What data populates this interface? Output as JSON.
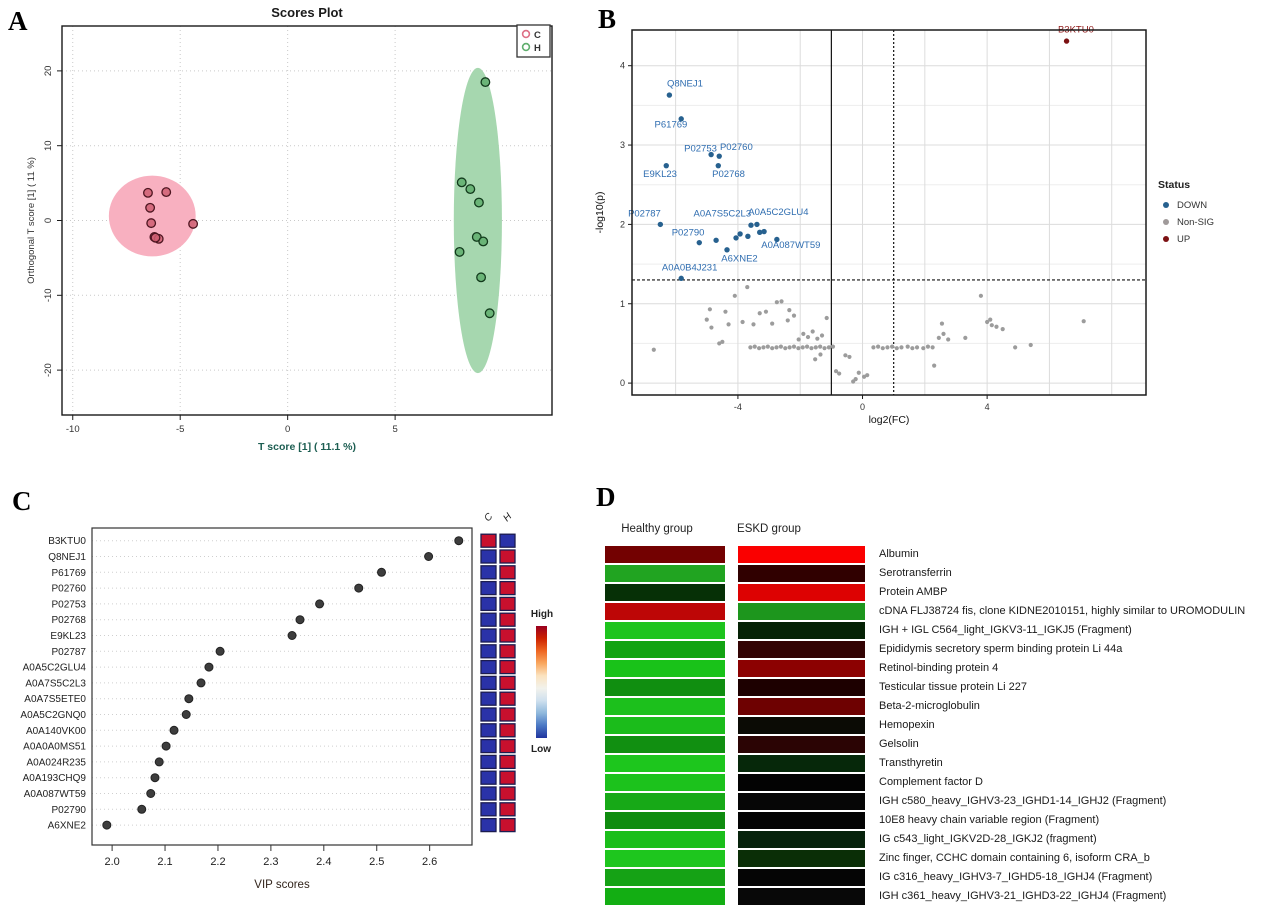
{
  "panels": {
    "a": "A",
    "b": "B",
    "c": "C",
    "d": "D"
  },
  "chart_data": [
    {
      "panel": "A",
      "id": "scores_plot",
      "type": "scatter",
      "title": "Scores Plot",
      "xlabel": "T score [1] ( 11.1 %)",
      "ylabel": "Orthogonal T score [1] ( 11 %)",
      "xlim": [
        -10.5,
        12.3
      ],
      "ylim": [
        -26,
        26
      ],
      "xticks": [
        -10,
        -5,
        0,
        5
      ],
      "yticks": [
        -20,
        -10,
        0,
        10,
        20
      ],
      "grid": "dotted",
      "legend": [
        {
          "label": "C",
          "color": "#dd6f85"
        },
        {
          "label": "H",
          "color": "#5fae6d"
        }
      ],
      "series": [
        {
          "name": "C",
          "marker_fill": "#cf5f72",
          "marker_stroke": "#4d1520",
          "ellipse_fill": "#f8b0c0",
          "ellipse": {
            "cx": -6.3,
            "cy": 0.6,
            "rx": 2.02,
            "ry": 5.4,
            "rot": 0
          },
          "points": [
            [
              -6.5,
              3.7
            ],
            [
              -5.65,
              3.8
            ],
            [
              -6.4,
              1.7
            ],
            [
              -6.35,
              -0.35
            ],
            [
              -4.4,
              -0.45
            ],
            [
              -6.2,
              -2.2
            ],
            [
              -6.0,
              -2.45
            ],
            [
              -6.15,
              -2.3
            ]
          ]
        },
        {
          "name": "H",
          "marker_fill": "#5fae6d",
          "marker_stroke": "#123a1c",
          "ellipse_fill": "#a6d7af",
          "ellipse": {
            "cx": 8.85,
            "cy": 0,
            "rx": 1.12,
            "ry": 20.4,
            "rot": 0
          },
          "points": [
            [
              9.2,
              18.5
            ],
            [
              8.1,
              5.1
            ],
            [
              8.5,
              4.2
            ],
            [
              8.9,
              2.4
            ],
            [
              8.8,
              -2.2
            ],
            [
              9.1,
              -2.8
            ],
            [
              8.0,
              -4.2
            ],
            [
              9.0,
              -7.6
            ],
            [
              9.4,
              -12.4
            ]
          ]
        }
      ]
    },
    {
      "panel": "B",
      "id": "volcano_plot",
      "type": "scatter",
      "xlabel": "log2(FC)",
      "ylabel": "-log10(p)",
      "xlim": [
        -7.4,
        9.1
      ],
      "ylim": [
        -0.15,
        4.45
      ],
      "xticks": [
        -4,
        0,
        4
      ],
      "yticks": [
        0,
        1,
        2,
        3,
        4
      ],
      "grid_x": [
        -6,
        -4,
        -2,
        0,
        2,
        4,
        6,
        8
      ],
      "grid_y": [
        0,
        1,
        2,
        3,
        4
      ],
      "grid_y_minor": [
        0.5,
        1.5,
        2.5,
        3.5
      ],
      "threshold_hline": 1.3,
      "threshold_vlines": [
        {
          "x": -1,
          "style": "solid"
        },
        {
          "x": 1,
          "style": "dashed"
        }
      ],
      "legend_title": "Status",
      "legend": [
        {
          "label": "DOWN",
          "color": "#27618f"
        },
        {
          "label": "Non-SIG",
          "color": "#a09a9a"
        },
        {
          "label": "UP",
          "color": "#7c1113"
        }
      ],
      "down": {
        "color": "#27618f",
        "label_color": "#2f6db0",
        "labeled_points": [
          {
            "id": "Q8NEJ1",
            "x": -6.2,
            "y": 3.63,
            "lx": -5.7,
            "ly": 3.74
          },
          {
            "id": "P61769",
            "x": -5.82,
            "y": 3.33,
            "lx": -6.15,
            "ly": 3.22
          },
          {
            "id": "P02753",
            "x": -4.86,
            "y": 2.88,
            "lx": -5.2,
            "ly": 2.92
          },
          {
            "id": "P02760",
            "x": -4.6,
            "y": 2.86,
            "lx": -4.05,
            "ly": 2.94
          },
          {
            "id": "P02768",
            "x": -4.63,
            "y": 2.74,
            "lx": -4.3,
            "ly": 2.6
          },
          {
            "id": "E9KL23",
            "x": -6.3,
            "y": 2.74,
            "lx": -6.5,
            "ly": 2.6
          },
          {
            "id": "P02787",
            "x": -6.49,
            "y": 2.0,
            "lx": -7.0,
            "ly": 2.1
          },
          {
            "id": "A0A7S5C2L3",
            "x": -3.58,
            "y": 1.99,
            "lx": -4.5,
            "ly": 2.1
          },
          {
            "id": "A0A5C2GLU4",
            "x": -3.39,
            "y": 2.0,
            "lx": -2.7,
            "ly": 2.12
          },
          {
            "id": "P02790",
            "x": -5.24,
            "y": 1.77,
            "lx": -5.6,
            "ly": 1.86
          },
          {
            "id": "A6XNE2",
            "x": -4.35,
            "y": 1.68,
            "lx": -3.95,
            "ly": 1.53
          },
          {
            "id": "A0A087WT59",
            "x": -2.75,
            "y": 1.81,
            "lx": -2.3,
            "ly": 1.7
          },
          {
            "id": "A0A0B4J231",
            "x": -5.82,
            "y": 1.32,
            "lx": -5.55,
            "ly": 1.42
          }
        ],
        "points": [
          [
            -4.7,
            1.8
          ],
          [
            -4.06,
            1.83
          ],
          [
            -3.93,
            1.88
          ],
          [
            -3.68,
            1.85
          ],
          [
            -3.3,
            1.9
          ],
          [
            -3.16,
            1.91
          ]
        ]
      },
      "up": {
        "color": "#7c1113",
        "label_color": "#8f1a1a",
        "labeled_points": [
          {
            "id": "B3KTU0",
            "x": 6.55,
            "y": 4.31,
            "lx": 6.85,
            "ly": 4.42
          }
        ]
      },
      "nonsig": {
        "color": "#9c9c9c",
        "points": [
          [
            -6.7,
            0.42
          ],
          [
            -5.0,
            0.8
          ],
          [
            -4.9,
            0.93
          ],
          [
            -4.85,
            0.7
          ],
          [
            -4.6,
            0.5
          ],
          [
            -4.5,
            0.52
          ],
          [
            -4.4,
            0.9
          ],
          [
            -4.3,
            0.74
          ],
          [
            -4.1,
            1.1
          ],
          [
            -3.85,
            0.77
          ],
          [
            -3.7,
            1.21
          ],
          [
            -3.5,
            0.74
          ],
          [
            -3.3,
            0.88
          ],
          [
            -3.1,
            0.9
          ],
          [
            -2.9,
            0.75
          ],
          [
            -2.75,
            1.02
          ],
          [
            -2.6,
            1.03
          ],
          [
            -2.4,
            0.79
          ],
          [
            -2.35,
            0.92
          ],
          [
            -2.2,
            0.85
          ],
          [
            -2.05,
            0.55
          ],
          [
            -1.9,
            0.62
          ],
          [
            -1.75,
            0.58
          ],
          [
            -1.6,
            0.65
          ],
          [
            -1.45,
            0.56
          ],
          [
            -1.3,
            0.6
          ],
          [
            -1.15,
            0.82
          ],
          [
            -3.6,
            0.45
          ],
          [
            -3.46,
            0.46
          ],
          [
            -3.32,
            0.44
          ],
          [
            -3.18,
            0.45
          ],
          [
            -3.04,
            0.46
          ],
          [
            -2.9,
            0.44
          ],
          [
            -2.76,
            0.45
          ],
          [
            -2.62,
            0.46
          ],
          [
            -2.48,
            0.44
          ],
          [
            -2.34,
            0.45
          ],
          [
            -2.2,
            0.46
          ],
          [
            -2.06,
            0.44
          ],
          [
            -1.92,
            0.45
          ],
          [
            -1.78,
            0.46
          ],
          [
            -1.64,
            0.44
          ],
          [
            -1.5,
            0.45
          ],
          [
            -1.36,
            0.46
          ],
          [
            -1.22,
            0.44
          ],
          [
            -1.08,
            0.45
          ],
          [
            -0.95,
            0.46
          ],
          [
            -1.35,
            0.36
          ],
          [
            -1.52,
            0.3
          ],
          [
            -0.85,
            0.15
          ],
          [
            -0.75,
            0.12
          ],
          [
            -0.55,
            0.35
          ],
          [
            -0.42,
            0.33
          ],
          [
            -0.3,
            0.02
          ],
          [
            -0.22,
            0.05
          ],
          [
            -0.12,
            0.13
          ],
          [
            0.05,
            0.08
          ],
          [
            0.15,
            0.1
          ],
          [
            0.35,
            0.45
          ],
          [
            0.5,
            0.46
          ],
          [
            0.65,
            0.44
          ],
          [
            0.8,
            0.45
          ],
          [
            0.95,
            0.46
          ],
          [
            1.1,
            0.44
          ],
          [
            1.25,
            0.45
          ],
          [
            1.45,
            0.46
          ],
          [
            1.6,
            0.44
          ],
          [
            1.75,
            0.45
          ],
          [
            1.95,
            0.44
          ],
          [
            2.1,
            0.46
          ],
          [
            2.25,
            0.45
          ],
          [
            2.3,
            0.22
          ],
          [
            2.45,
            0.57
          ],
          [
            2.55,
            0.75
          ],
          [
            2.6,
            0.62
          ],
          [
            2.75,
            0.55
          ],
          [
            3.3,
            0.57
          ],
          [
            3.8,
            1.1
          ],
          [
            4.0,
            0.77
          ],
          [
            4.1,
            0.8
          ],
          [
            4.15,
            0.73
          ],
          [
            4.3,
            0.71
          ],
          [
            4.5,
            0.68
          ],
          [
            4.9,
            0.45
          ],
          [
            5.4,
            0.48
          ],
          [
            7.1,
            0.78
          ]
        ]
      }
    },
    {
      "panel": "C",
      "id": "vip_scores",
      "type": "scatter",
      "xlabel": "VIP scores",
      "xlim": [
        1.962,
        2.68
      ],
      "xticks": [
        2.0,
        2.1,
        2.2,
        2.3,
        2.4,
        2.5,
        2.6
      ],
      "dot_color": "#3d3d3d",
      "proteins": [
        "B3KTU0",
        "Q8NEJ1",
        "P61769",
        "P02760",
        "P02753",
        "P02768",
        "E9KL23",
        "P02787",
        "A0A5C2GLU4",
        "A0A7S5C2L3",
        "A0A7S5ETE0",
        "A0A5C2GNQ0",
        "A0A140VK00",
        "A0A0A0MS51",
        "A0A024R235",
        "A0A193CHQ9",
        "A0A087WT59",
        "P02790",
        "A6XNE2"
      ],
      "values": [
        2.655,
        2.598,
        2.509,
        2.466,
        2.392,
        2.355,
        2.34,
        2.204,
        2.183,
        2.168,
        2.145,
        2.14,
        2.117,
        2.102,
        2.089,
        2.081,
        2.073,
        2.056,
        1.99
      ],
      "group_columns": [
        "C",
        "H"
      ],
      "cells": [
        [
          "high",
          "low"
        ],
        [
          "low",
          "high"
        ],
        [
          "low",
          "high"
        ],
        [
          "low",
          "high"
        ],
        [
          "low",
          "high"
        ],
        [
          "low",
          "high"
        ],
        [
          "low",
          "high"
        ],
        [
          "low",
          "high"
        ],
        [
          "low",
          "high"
        ],
        [
          "low",
          "high"
        ],
        [
          "low",
          "high"
        ],
        [
          "low",
          "high"
        ],
        [
          "low",
          "high"
        ],
        [
          "low",
          "high"
        ],
        [
          "low",
          "high"
        ],
        [
          "low",
          "high"
        ],
        [
          "low",
          "high"
        ],
        [
          "low",
          "high"
        ],
        [
          "low",
          "high"
        ]
      ],
      "cell_colors": {
        "high": "#c8102e",
        "low": "#2a32a8",
        "border": "#1c1c50"
      },
      "colorbar": {
        "top_label": "High",
        "bottom_label": "Low",
        "colors": [
          "#99001f",
          "#cc2200",
          "#ee6622",
          "#f9a75f",
          "#fbe3c0",
          "#f2f2ec",
          "#cfe0ee",
          "#8fb8dc",
          "#4a78c4",
          "#20359e"
        ]
      }
    },
    {
      "panel": "D",
      "id": "abundance_heatmap",
      "type": "heatmap",
      "columns": [
        "Healthy group",
        "ESKD group"
      ],
      "rows": [
        {
          "label": "Albumin",
          "healthy": "#730101",
          "eskd": "#fa0000"
        },
        {
          "label": "Serotransferrin",
          "healthy": "#21a421",
          "eskd": "#300000"
        },
        {
          "label": "Protein AMBP",
          "healthy": "#063006",
          "eskd": "#dd0202"
        },
        {
          "label": "cDNA FLJ38724 fis, clone KIDNE2010151, highly similar to UROMODULIN",
          "healthy": "#bd0606",
          "eskd": "#1d961d"
        },
        {
          "label": "IGH + IGL C564_light_IGKV3-11_IGKJ5 (Fragment)",
          "healthy": "#1ec41e",
          "eskd": "#052205"
        },
        {
          "label": "Epididymis secretory sperm binding protein Li 44a",
          "healthy": "#12a312",
          "eskd": "#330404"
        },
        {
          "label": "Retinol-binding protein 4",
          "healthy": "#19c219",
          "eskd": "#8c0101"
        },
        {
          "label": "Testicular tissue protein Li 227",
          "healthy": "#108e10",
          "eskd": "#1d0000"
        },
        {
          "label": "Beta-2-microglobulin",
          "healthy": "#1cc01c",
          "eskd": "#6e0101"
        },
        {
          "label": "Hemopexin",
          "healthy": "#1bbc1b",
          "eskd": "#0b0b05"
        },
        {
          "label": "Gelsolin",
          "healthy": "#118f11",
          "eskd": "#2b0404"
        },
        {
          "label": "Transthyretin",
          "healthy": "#1dc61d",
          "eskd": "#06280a"
        },
        {
          "label": "Complement factor D",
          "healthy": "#1cc21c",
          "eskd": "#030303"
        },
        {
          "label": "IGH c580_heavy_IGHV3-23_IGHD1-14_IGHJ2 (Fragment)",
          "healthy": "#17a917",
          "eskd": "#060606"
        },
        {
          "label": "10E8 heavy chain variable region (Fragment)",
          "healthy": "#0f8c0f",
          "eskd": "#040404"
        },
        {
          "label": "IG c543_light_IGKV2D-28_IGKJ2 (fragment)",
          "healthy": "#1bbe1b",
          "eskd": "#07230c"
        },
        {
          "label": "Zinc finger, CCHC domain containing 6, isoform CRA_b",
          "healthy": "#1ec61e",
          "eskd": "#0a2e06"
        },
        {
          "label": "IG c316_heavy_IGHV3-7_IGHD5-18_IGHJ4 (Fragment)",
          "healthy": "#15a215",
          "eskd": "#050505"
        },
        {
          "label": "IGH c361_heavy_IGHV3-21_IGHD3-22_IGHJ4 (Fragment)",
          "healthy": "#13ae13",
          "eskd": "#080808"
        }
      ]
    }
  ]
}
